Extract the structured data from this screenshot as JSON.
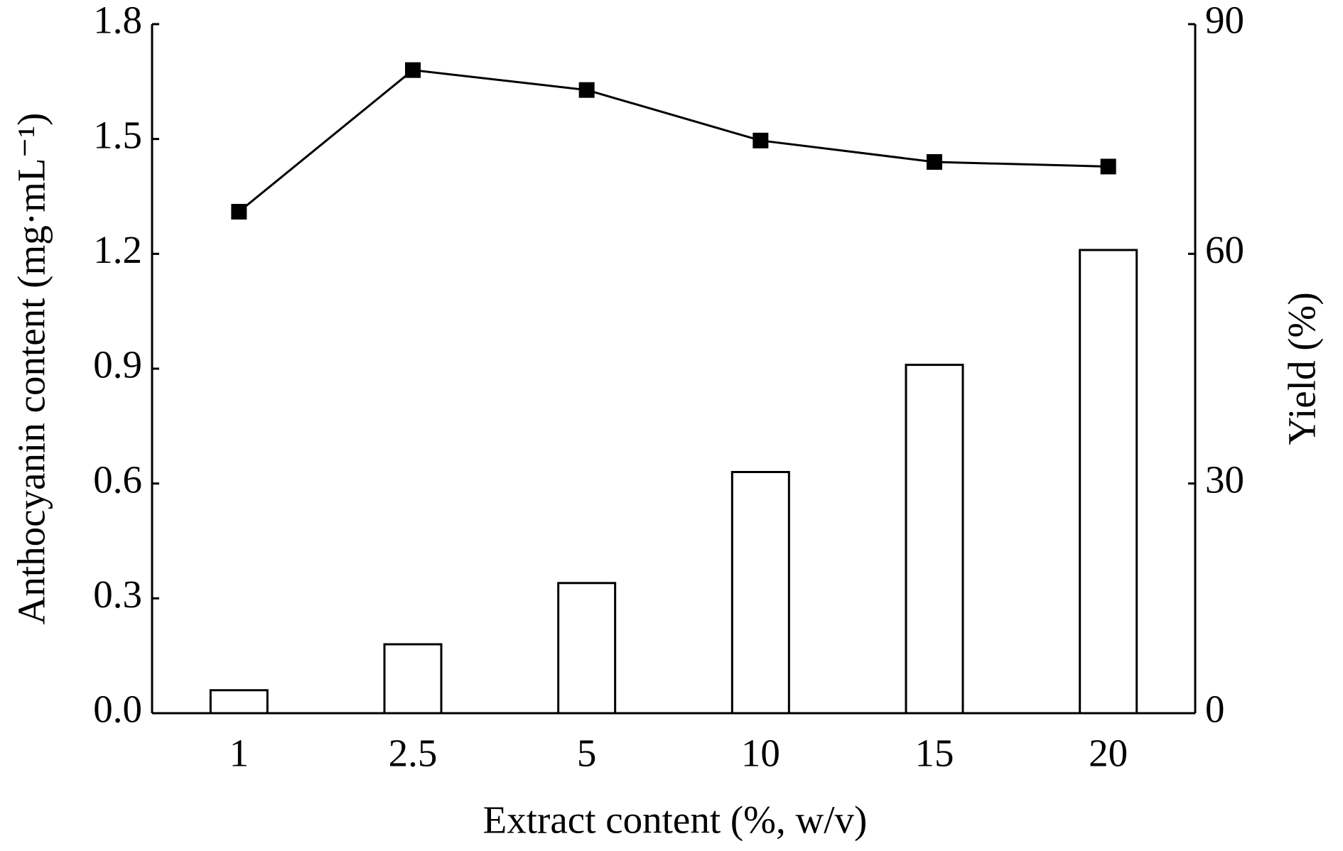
{
  "chart_data": {
    "type": "bar",
    "x_label": "Extract content (%, w/v)",
    "y_label": "Anthocyanin content (mg·mL⁻¹)",
    "y2_label": "Yield (%)",
    "categories": [
      "1",
      "2.5",
      "5",
      "10",
      "15",
      "20"
    ],
    "series": [
      {
        "color": "#ffffff",
        "values": [
          0.06,
          0.18,
          0.34,
          0.63,
          0.91,
          1.21
        ]
      },
      {
        "type": "line",
        "axis": "y2",
        "color": "#000000",
        "values": [
          65.5,
          84.0,
          81.4,
          74.8,
          72.0,
          71.4
        ]
      }
    ],
    "ylim": [
      0,
      1.8
    ],
    "yticks": [
      {
        "value": 0,
        "label": "0.0"
      },
      0.3,
      0.6,
      0.9,
      1.2,
      1.5,
      1.8
    ],
    "y2lim": [
      0,
      90
    ],
    "y2ticks": [
      0,
      30,
      60,
      90
    ]
  }
}
